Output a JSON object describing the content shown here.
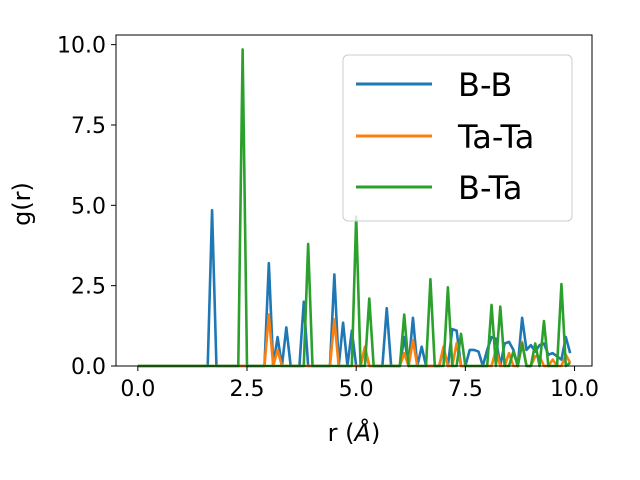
{
  "chart_data": {
    "type": "line",
    "xlabel": "r (Å)",
    "ylabel": "g(r)",
    "xlim": [
      -0.5,
      10.4
    ],
    "ylim": [
      0,
      10.3
    ],
    "xticks": [
      "0.0",
      "2.5",
      "5.0",
      "7.5",
      "10.0"
    ],
    "yticks": [
      "0.0",
      "2.5",
      "5.0",
      "7.5",
      "10.0"
    ],
    "grid": false,
    "legend_position": "top-right",
    "x": [
      0.0,
      0.1,
      0.2,
      0.3,
      0.4,
      0.5,
      0.6,
      0.7,
      0.8,
      0.9,
      1.0,
      1.1,
      1.2,
      1.3,
      1.4,
      1.5,
      1.6,
      1.7,
      1.8,
      1.9,
      2.0,
      2.1,
      2.2,
      2.3,
      2.4,
      2.5,
      2.6,
      2.7,
      2.8,
      2.9,
      3.0,
      3.1,
      3.2,
      3.3,
      3.4,
      3.5,
      3.6,
      3.7,
      3.8,
      3.9,
      4.0,
      4.1,
      4.2,
      4.3,
      4.4,
      4.5,
      4.6,
      4.7,
      4.8,
      4.9,
      5.0,
      5.1,
      5.2,
      5.3,
      5.4,
      5.5,
      5.6,
      5.7,
      5.8,
      5.9,
      6.0,
      6.1,
      6.2,
      6.3,
      6.4,
      6.5,
      6.6,
      6.7,
      6.8,
      6.9,
      7.0,
      7.1,
      7.2,
      7.3,
      7.4,
      7.5,
      7.6,
      7.7,
      7.8,
      7.9,
      8.0,
      8.1,
      8.2,
      8.3,
      8.4,
      8.5,
      8.6,
      8.7,
      8.8,
      8.9,
      9.0,
      9.1,
      9.2,
      9.3,
      9.4,
      9.5,
      9.6,
      9.7,
      9.8,
      9.9
    ],
    "series": [
      {
        "name": "B-B",
        "color": "#1f77b4",
        "values": [
          0,
          0,
          0,
          0,
          0,
          0,
          0,
          0,
          0,
          0,
          0,
          0,
          0,
          0,
          0,
          0,
          0,
          4.85,
          0,
          0,
          0,
          0,
          0,
          0,
          0,
          0,
          0,
          0,
          0,
          0,
          3.2,
          0,
          0.9,
          0,
          1.2,
          0,
          0,
          0,
          2.0,
          0,
          0,
          0,
          0,
          0,
          0,
          2.85,
          0,
          1.35,
          0,
          1.1,
          0,
          0,
          0.55,
          0,
          0,
          0,
          0,
          1.8,
          0,
          0,
          0,
          0.9,
          0,
          1.5,
          0,
          0.6,
          0,
          0,
          0,
          0,
          0.55,
          0,
          1.15,
          1.1,
          0,
          0,
          0.5,
          0.5,
          0.45,
          0,
          0.5,
          0.9,
          0.85,
          0,
          0.7,
          0.75,
          0.5,
          0,
          1.5,
          0.5,
          0.65,
          0.45,
          0.65,
          0.7,
          0.35,
          0.4,
          0.3,
          0.2,
          0.9,
          0.4
        ]
      },
      {
        "name": "Ta-Ta",
        "color": "#ff7f0e",
        "values": [
          0,
          0,
          0,
          0,
          0,
          0,
          0,
          0,
          0,
          0,
          0,
          0,
          0,
          0,
          0,
          0,
          0,
          0,
          0,
          0,
          0,
          0,
          0,
          0,
          0,
          0,
          0,
          0,
          0,
          0,
          1.6,
          0,
          0.5,
          0,
          0,
          0,
          0,
          0,
          0,
          0,
          0,
          0,
          0,
          0,
          0,
          1.45,
          0,
          0,
          0,
          0,
          0,
          0,
          0.6,
          0,
          0,
          0,
          0,
          0,
          0,
          0,
          0,
          0.4,
          0,
          0.8,
          0,
          0,
          0,
          0,
          0,
          0,
          0.6,
          0,
          0,
          0.7,
          0,
          0,
          0,
          0,
          0,
          0,
          0,
          0,
          0.5,
          0,
          0,
          0.4,
          0,
          0,
          0.75,
          0,
          0,
          0.3,
          0.3,
          0,
          0,
          0.2,
          0,
          0,
          0.35,
          0.1
        ]
      },
      {
        "name": "B-Ta",
        "color": "#2ca02c",
        "values": [
          0,
          0,
          0,
          0,
          0,
          0,
          0,
          0,
          0,
          0,
          0,
          0,
          0,
          0,
          0,
          0,
          0,
          0,
          0,
          0,
          0,
          0,
          0,
          0,
          9.85,
          0,
          0,
          0,
          0,
          0,
          0,
          0,
          0,
          0,
          0,
          0,
          0,
          0,
          0,
          3.8,
          0,
          0,
          0,
          0,
          0,
          0,
          0,
          0,
          0,
          0,
          4.65,
          0,
          0,
          2.1,
          0,
          0,
          0,
          0,
          0,
          0,
          0,
          1.6,
          0,
          0,
          0,
          0,
          0,
          2.7,
          0,
          0,
          0,
          2.45,
          0,
          0,
          1.0,
          0,
          0,
          0,
          0,
          0,
          0,
          1.9,
          0,
          1.85,
          0,
          0,
          0.45,
          0,
          0.7,
          0,
          0,
          0.7,
          0,
          1.4,
          0,
          0,
          0,
          2.55,
          0,
          0.1
        ]
      }
    ]
  }
}
